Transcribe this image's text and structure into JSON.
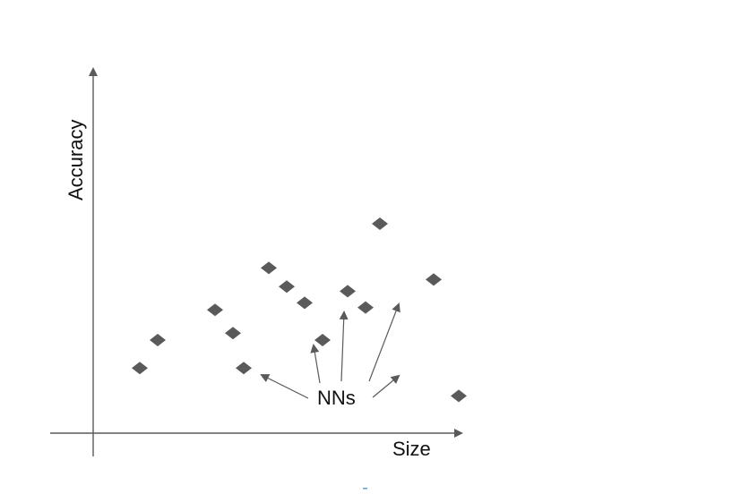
{
  "diagram": {
    "x_axis_label": "Size",
    "y_axis_label": "Accuracy",
    "annotation_label": "NNs",
    "colors": {
      "axis": "#5a5a5a",
      "point": "#5a5a5a",
      "text": "#111111"
    },
    "points": [
      {
        "id": "p1",
        "x": 1.3,
        "y": 2.8
      },
      {
        "id": "p2",
        "x": 1.8,
        "y": 4.0
      },
      {
        "id": "p3",
        "x": 3.4,
        "y": 5.3
      },
      {
        "id": "p4",
        "x": 3.9,
        "y": 4.3
      },
      {
        "id": "p5",
        "x": 4.2,
        "y": 2.8
      },
      {
        "id": "p6",
        "x": 4.9,
        "y": 7.1
      },
      {
        "id": "p7",
        "x": 5.4,
        "y": 6.3
      },
      {
        "id": "p8",
        "x": 5.9,
        "y": 5.6
      },
      {
        "id": "p9",
        "x": 6.4,
        "y": 4.0
      },
      {
        "id": "p10",
        "x": 7.1,
        "y": 6.1
      },
      {
        "id": "p11",
        "x": 7.6,
        "y": 5.4
      },
      {
        "id": "p12",
        "x": 8.0,
        "y": 9.0
      },
      {
        "id": "p13",
        "x": 9.5,
        "y": 6.6
      },
      {
        "id": "p14",
        "x": 10.2,
        "y": 1.6
      }
    ],
    "nn_targets": [
      "p5",
      "p9",
      "p10",
      "p11",
      "empty-target"
    ]
  }
}
